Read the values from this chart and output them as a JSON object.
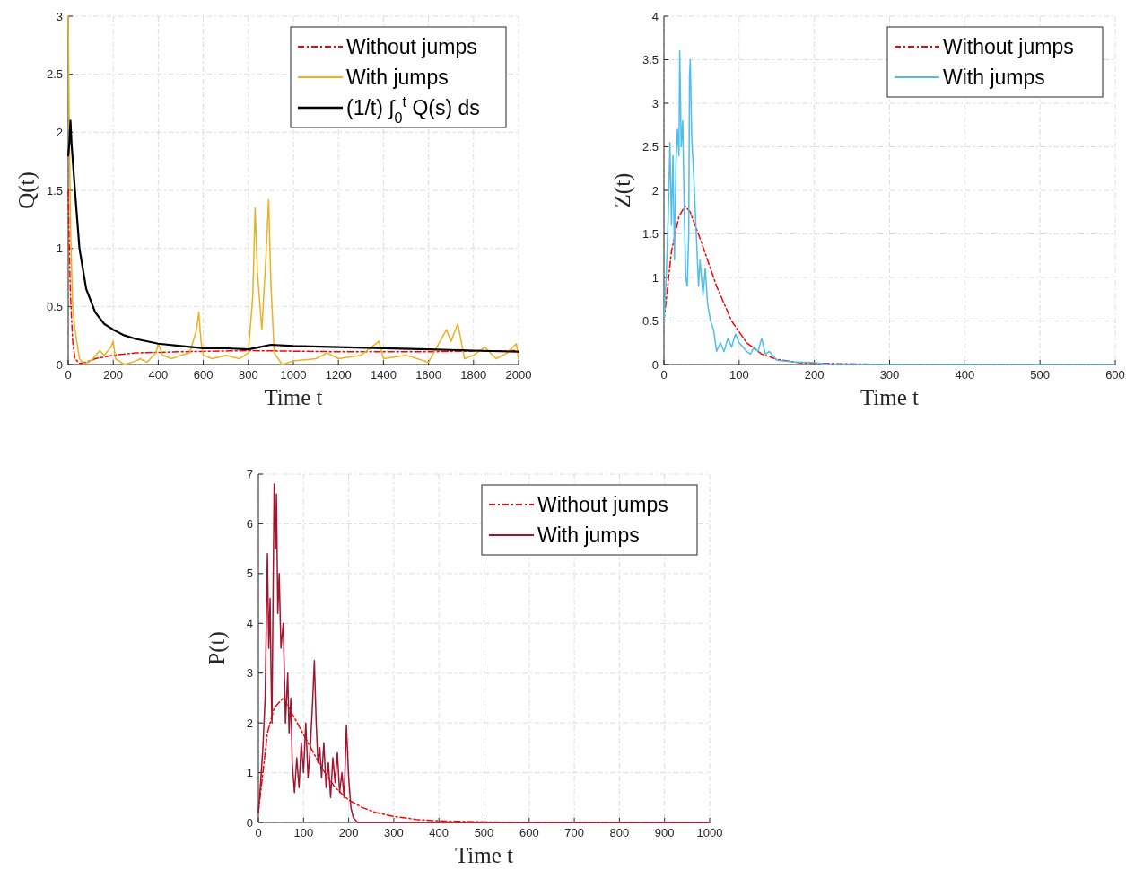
{
  "chart_data": [
    {
      "type": "line",
      "xlabel": "Time t",
      "ylabel": "Q(t)",
      "xlim": [
        0,
        2000
      ],
      "xticks": [
        0,
        200,
        400,
        600,
        800,
        1000,
        1200,
        1400,
        1600,
        1800,
        2000
      ],
      "ylim": [
        0,
        3
      ],
      "yticks": [
        0,
        0.5,
        1,
        1.5,
        2,
        2.5,
        3
      ],
      "grid": true,
      "legend": "top right",
      "series": [
        {
          "name": "Without jumps",
          "color": "#ff0000",
          "line_style": "dashed",
          "x": [
            0,
            5,
            10,
            20,
            30,
            50,
            80,
            120,
            200,
            300,
            500,
            800,
            1200,
            1600,
            2000
          ],
          "values": [
            1.5,
            1.0,
            0.6,
            0.2,
            0.05,
            0.01,
            0.02,
            0.05,
            0.08,
            0.1,
            0.11,
            0.12,
            0.11,
            0.11,
            0.12
          ]
        },
        {
          "name": "With jumps",
          "color": "#edb120",
          "line_style": "solid",
          "x": [
            0,
            5,
            10,
            20,
            30,
            50,
            70,
            90,
            110,
            140,
            160,
            190,
            200,
            210,
            250,
            300,
            320,
            350,
            390,
            400,
            420,
            460,
            500,
            540,
            570,
            580,
            590,
            600,
            640,
            700,
            760,
            800,
            820,
            830,
            840,
            860,
            880,
            890,
            900,
            915,
            950,
            1000,
            1100,
            1150,
            1200,
            1300,
            1380,
            1400,
            1500,
            1600,
            1680,
            1700,
            1730,
            1760,
            1800,
            1850,
            1900,
            1950,
            1990,
            2000
          ],
          "values": [
            3.0,
            2.0,
            1.2,
            0.5,
            0.3,
            0.05,
            0.01,
            0.02,
            0.05,
            0.12,
            0.08,
            0.15,
            0.2,
            0.05,
            0.0,
            0.03,
            0.05,
            0.02,
            0.1,
            0.18,
            0.08,
            0.05,
            0.08,
            0.1,
            0.3,
            0.45,
            0.2,
            0.08,
            0.05,
            0.08,
            0.05,
            0.1,
            0.6,
            1.35,
            0.8,
            0.3,
            1.0,
            1.42,
            0.7,
            0.1,
            0.0,
            0.03,
            0.05,
            0.1,
            0.05,
            0.08,
            0.2,
            0.05,
            0.08,
            0.02,
            0.3,
            0.2,
            0.35,
            0.05,
            0.08,
            0.15,
            0.05,
            0.1,
            0.18,
            0.05
          ]
        },
        {
          "name": "(1/t) ∫$_{0}$$^{t}$ Q(s) ds",
          "color": "#000000",
          "line_style": "solid",
          "x": [
            0,
            5,
            10,
            15,
            30,
            50,
            80,
            120,
            160,
            200,
            250,
            300,
            400,
            500,
            600,
            700,
            800,
            850,
            900,
            1000,
            1200,
            1400,
            1600,
            1800,
            2000
          ],
          "values": [
            1.8,
            1.9,
            2.1,
            1.9,
            1.5,
            1.0,
            0.65,
            0.45,
            0.35,
            0.3,
            0.25,
            0.22,
            0.18,
            0.16,
            0.14,
            0.14,
            0.13,
            0.15,
            0.17,
            0.16,
            0.15,
            0.14,
            0.13,
            0.12,
            0.11
          ]
        }
      ]
    },
    {
      "type": "line",
      "xlabel": "Time t",
      "ylabel": "Z(t)",
      "xlim": [
        0,
        600
      ],
      "xticks": [
        0,
        100,
        200,
        300,
        400,
        500,
        600
      ],
      "ylim": [
        0,
        4
      ],
      "yticks": [
        0,
        0.5,
        1,
        1.5,
        2,
        2.5,
        3,
        3.5,
        4
      ],
      "grid": true,
      "legend": "top right",
      "series": [
        {
          "name": "Without jumps",
          "color": "#ff0000",
          "line_style": "dashed",
          "x": [
            0,
            5,
            10,
            20,
            28,
            35,
            50,
            70,
            90,
            110,
            130,
            150,
            180,
            220,
            300,
            600
          ],
          "values": [
            0.5,
            0.9,
            1.3,
            1.7,
            1.82,
            1.75,
            1.4,
            0.9,
            0.5,
            0.25,
            0.12,
            0.06,
            0.02,
            0.01,
            0,
            0
          ]
        },
        {
          "name": "With jumps",
          "color": "#4dbeee",
          "line_style": "solid",
          "x": [
            0,
            3,
            6,
            8,
            10,
            12,
            14,
            16,
            18,
            20,
            21,
            23,
            25,
            27,
            29,
            31,
            33,
            34,
            35,
            37,
            40,
            43,
            46,
            48,
            52,
            55,
            58,
            62,
            66,
            70,
            75,
            80,
            85,
            90,
            95,
            100,
            105,
            110,
            115,
            120,
            125,
            130,
            135,
            140,
            150,
            170,
            200,
            220,
            600
          ],
          "values": [
            0.5,
            1.0,
            1.8,
            2.55,
            1.6,
            2.4,
            1.2,
            2.3,
            2.7,
            2.4,
            3.6,
            2.5,
            2.8,
            1.8,
            1.0,
            0.9,
            1.5,
            3.3,
            3.5,
            2.6,
            2.1,
            1.5,
            0.9,
            1.2,
            0.8,
            1.1,
            0.7,
            0.5,
            0.4,
            0.15,
            0.25,
            0.15,
            0.3,
            0.2,
            0.35,
            0.25,
            0.2,
            0.15,
            0.12,
            0.2,
            0.15,
            0.3,
            0.12,
            0.15,
            0.05,
            0.03,
            0.02,
            0.0,
            0.0
          ]
        }
      ]
    },
    {
      "type": "line",
      "xlabel": "Time t",
      "ylabel": "P(t)",
      "xlim": [
        0,
        1000
      ],
      "xticks": [
        0,
        100,
        200,
        300,
        400,
        500,
        600,
        700,
        800,
        900,
        1000
      ],
      "ylim": [
        0,
        7
      ],
      "yticks": [
        0,
        1,
        2,
        3,
        4,
        5,
        6,
        7
      ],
      "grid": true,
      "legend": "top right",
      "series": [
        {
          "name": "Without jumps",
          "color": "#ff0000",
          "line_style": "dashed",
          "x": [
            0,
            10,
            20,
            35,
            55,
            80,
            110,
            140,
            170,
            200,
            230,
            260,
            300,
            350,
            400,
            500,
            600,
            1000
          ],
          "values": [
            0.2,
            1.0,
            1.8,
            2.3,
            2.5,
            2.1,
            1.6,
            1.1,
            0.7,
            0.45,
            0.3,
            0.2,
            0.12,
            0.06,
            0.03,
            0.01,
            0,
            0
          ]
        },
        {
          "name": "With jumps",
          "color": "#a2142f",
          "line_style": "solid",
          "x": [
            0,
            5,
            10,
            15,
            20,
            23,
            26,
            28,
            30,
            33,
            35,
            38,
            40,
            43,
            46,
            50,
            55,
            60,
            65,
            68,
            72,
            75,
            80,
            85,
            90,
            95,
            100,
            105,
            110,
            115,
            120,
            124,
            128,
            132,
            136,
            140,
            145,
            150,
            155,
            160,
            165,
            170,
            175,
            180,
            185,
            190,
            195,
            200,
            205,
            210,
            220,
            1000
          ],
          "values": [
            0.2,
            0.8,
            1.5,
            2.5,
            5.4,
            3.5,
            4.5,
            3.0,
            2.0,
            5.0,
            6.8,
            5.5,
            6.6,
            4.2,
            5.0,
            3.5,
            4.0,
            2.0,
            3.0,
            1.8,
            2.5,
            1.2,
            0.6,
            1.3,
            0.7,
            1.6,
            1.0,
            2.0,
            0.9,
            1.5,
            2.4,
            3.25,
            2.0,
            1.2,
            1.5,
            0.9,
            1.6,
            0.7,
            1.2,
            0.5,
            1.3,
            0.8,
            1.4,
            0.6,
            1.0,
            0.5,
            1.95,
            0.9,
            0.3,
            0.1,
            0,
            0
          ]
        }
      ]
    }
  ]
}
